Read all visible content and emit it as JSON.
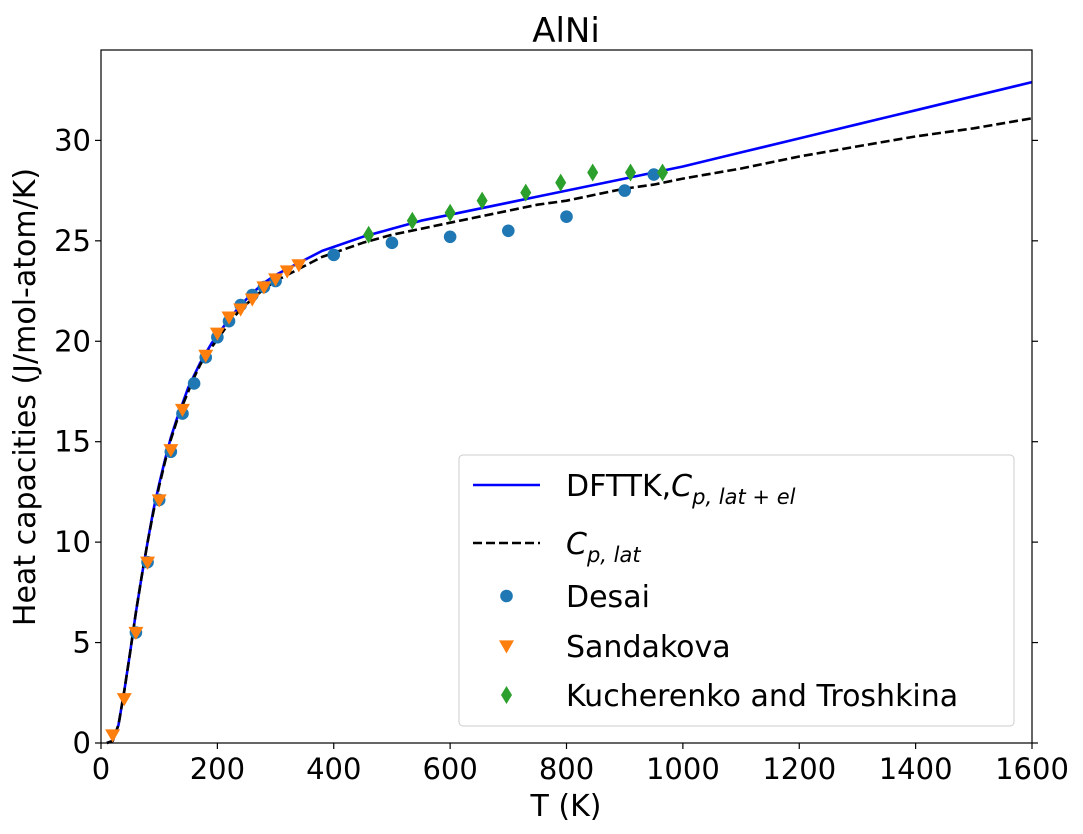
{
  "chart_data": {
    "type": "line",
    "title": "AlNi",
    "xlabel": "T (K)",
    "ylabel": "Heat capacities (J/mol-atom/K)",
    "xlim": [
      0,
      1600
    ],
    "ylim": [
      0,
      34.5
    ],
    "xticks": [
      0,
      200,
      400,
      600,
      800,
      1000,
      1200,
      1400,
      1600
    ],
    "yticks": [
      0,
      5,
      10,
      15,
      20,
      25,
      30
    ],
    "grid": false,
    "legend_position": "lower-right",
    "series": [
      {
        "name": "DFTTK,C_{p,lat+el}",
        "legend_main": "DFTTK,",
        "legend_math": "C",
        "legend_sub": "p, lat + el",
        "kind": "line",
        "color": "#0000ff",
        "dash": "solid",
        "x": [
          10,
          20,
          30,
          40,
          50,
          60,
          70,
          80,
          90,
          100,
          110,
          120,
          130,
          140,
          150,
          160,
          170,
          180,
          190,
          200,
          220,
          240,
          260,
          280,
          300,
          320,
          340,
          360,
          380,
          400,
          450,
          500,
          550,
          600,
          650,
          700,
          750,
          800,
          850,
          900,
          950,
          1000,
          1100,
          1200,
          1300,
          1400,
          1500,
          1600
        ],
        "y": [
          0.0,
          0.1,
          0.9,
          2.6,
          4.5,
          6.5,
          8.3,
          10.0,
          11.6,
          12.9,
          14.1,
          15.2,
          16.1,
          16.9,
          17.7,
          18.3,
          18.9,
          19.4,
          19.9,
          20.3,
          21.1,
          21.8,
          22.4,
          22.9,
          23.3,
          23.6,
          23.9,
          24.2,
          24.5,
          24.7,
          25.2,
          25.6,
          26.0,
          26.3,
          26.6,
          26.9,
          27.2,
          27.5,
          27.8,
          28.1,
          28.4,
          28.7,
          29.4,
          30.1,
          30.8,
          31.5,
          32.2,
          32.9
        ]
      },
      {
        "name": "C_{p,lat}",
        "legend_main": "",
        "legend_math": "C",
        "legend_sub": "p, lat",
        "kind": "line",
        "color": "#000000",
        "dash": "dashed",
        "x": [
          10,
          20,
          30,
          40,
          50,
          60,
          70,
          80,
          90,
          100,
          110,
          120,
          130,
          140,
          150,
          160,
          170,
          180,
          190,
          200,
          220,
          240,
          260,
          280,
          300,
          320,
          340,
          360,
          380,
          400,
          450,
          500,
          550,
          600,
          650,
          700,
          750,
          800,
          850,
          900,
          950,
          1000,
          1100,
          1200,
          1300,
          1400,
          1500,
          1600
        ],
        "y": [
          0.0,
          0.1,
          0.9,
          2.6,
          4.5,
          6.5,
          8.3,
          10.0,
          11.5,
          12.8,
          14.0,
          15.1,
          16.0,
          16.8,
          17.5,
          18.2,
          18.8,
          19.3,
          19.7,
          20.1,
          20.9,
          21.6,
          22.1,
          22.6,
          23.0,
          23.3,
          23.6,
          23.9,
          24.2,
          24.4,
          24.9,
          25.3,
          25.6,
          25.9,
          26.2,
          26.5,
          26.8,
          27.0,
          27.3,
          27.6,
          27.8,
          28.1,
          28.6,
          29.2,
          29.7,
          30.2,
          30.6,
          31.1
        ]
      },
      {
        "name": "Desai",
        "kind": "scatter",
        "marker": "circle",
        "color": "#1f77b4",
        "x": [
          60,
          80,
          100,
          120,
          140,
          160,
          180,
          200,
          220,
          240,
          260,
          280,
          300,
          400,
          500,
          600,
          700,
          800,
          900,
          950
        ],
        "y": [
          5.5,
          9.0,
          12.1,
          14.5,
          16.4,
          17.9,
          19.2,
          20.2,
          21.0,
          21.8,
          22.3,
          22.7,
          23.0,
          24.3,
          24.9,
          25.2,
          25.5,
          26.2,
          27.5,
          28.3
        ]
      },
      {
        "name": "Sandakova",
        "kind": "scatter",
        "marker": "triangle-down",
        "color": "#ff7f0e",
        "x": [
          20,
          40,
          60,
          80,
          100,
          120,
          140,
          180,
          200,
          220,
          240,
          260,
          280,
          300,
          320,
          340
        ],
        "y": [
          0.4,
          2.2,
          5.5,
          9.0,
          12.1,
          14.6,
          16.6,
          19.3,
          20.4,
          21.2,
          21.6,
          22.1,
          22.7,
          23.1,
          23.5,
          23.8
        ]
      },
      {
        "name": "Kucherenko and Troshkina",
        "kind": "scatter",
        "marker": "diamond",
        "color": "#2ca02c",
        "x": [
          460,
          535,
          600,
          655,
          730,
          790,
          845,
          910,
          965
        ],
        "y": [
          25.3,
          26.0,
          26.4,
          27.0,
          27.4,
          27.9,
          28.4,
          28.4,
          28.4
        ]
      }
    ]
  }
}
